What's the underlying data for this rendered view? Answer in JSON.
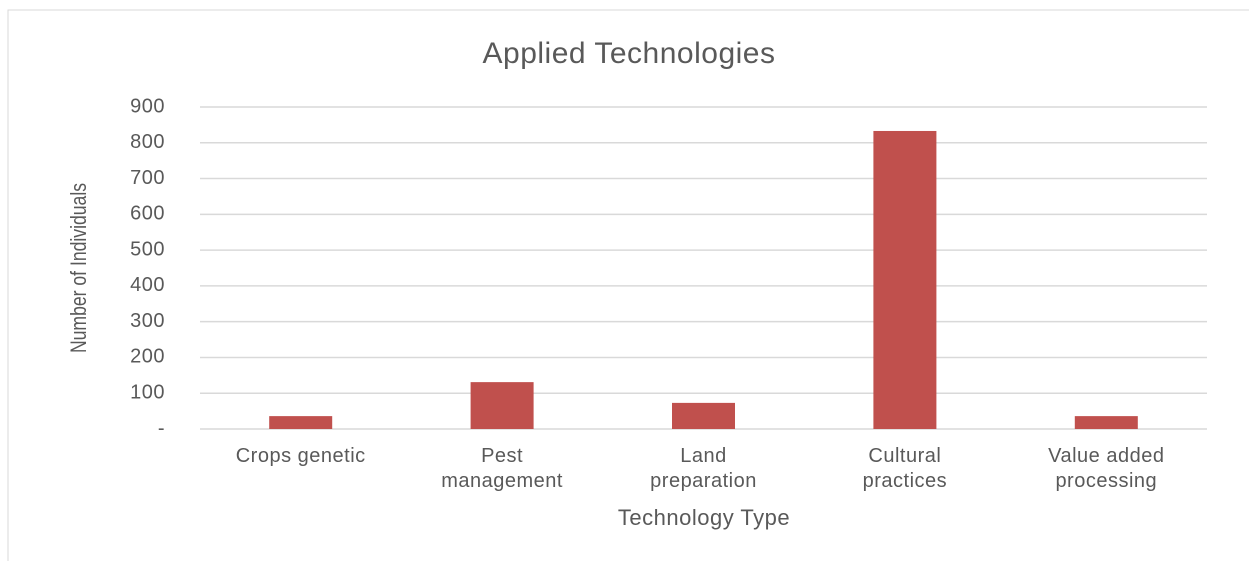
{
  "chart_data": {
    "type": "bar",
    "title": "Applied Technologies",
    "x_label": "Technology Type",
    "y_label": "Number of Individuals",
    "categories": [
      "Crops genetic",
      "Pest\nmanagement",
      "Land\npreparation",
      "Cultural\npractices",
      "Value added\nprocessing"
    ],
    "values": [
      36,
      131,
      73,
      833,
      36
    ],
    "color": "#c0504d",
    "ylim": [
      0,
      900
    ],
    "yticks": [
      {
        "value": 0,
        "label": "-"
      },
      100,
      200,
      300,
      400,
      500,
      600,
      700,
      800,
      900
    ],
    "grid": true
  }
}
